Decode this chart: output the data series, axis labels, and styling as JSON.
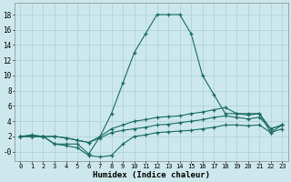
{
  "xlabel": "Humidex (Indice chaleur)",
  "bg_color": "#cce8ec",
  "grid_color": "#b0d4d8",
  "line_color": "#1a6b62",
  "xlim": [
    -0.5,
    23.5
  ],
  "ylim": [
    -1.2,
    19.5
  ],
  "xticks": [
    0,
    1,
    2,
    3,
    4,
    5,
    6,
    7,
    8,
    9,
    10,
    11,
    12,
    13,
    14,
    15,
    16,
    17,
    18,
    19,
    20,
    21,
    22,
    23
  ],
  "yticks": [
    0,
    2,
    4,
    6,
    8,
    10,
    12,
    14,
    16,
    18
  ],
  "ytick_labels": [
    "-0",
    "2",
    "4",
    "6",
    "8",
    "10",
    "12",
    "14",
    "16",
    "18"
  ],
  "lines": [
    {
      "x": [
        0,
        1,
        2,
        3,
        4,
        5,
        6,
        7,
        8,
        9,
        10,
        11,
        12,
        13,
        14,
        15,
        16,
        17,
        18,
        19,
        20,
        21,
        22,
        23
      ],
      "y": [
        2,
        2,
        2,
        1,
        1,
        1,
        -0.3,
        2,
        5,
        9,
        13,
        15.5,
        18,
        18,
        18,
        15.5,
        10,
        7.5,
        5,
        5,
        5,
        5,
        2.5,
        3.5
      ]
    },
    {
      "x": [
        0,
        1,
        2,
        3,
        4,
        5,
        6,
        7,
        8,
        9,
        10,
        11,
        12,
        13,
        14,
        15,
        16,
        17,
        18,
        19,
        20,
        21,
        22,
        23
      ],
      "y": [
        2,
        2,
        2,
        2,
        1.8,
        1.5,
        1.2,
        2,
        3,
        3.5,
        4,
        4.2,
        4.5,
        4.6,
        4.7,
        5,
        5.2,
        5.5,
        5.8,
        5,
        4.8,
        5,
        3,
        3.5
      ]
    },
    {
      "x": [
        0,
        1,
        2,
        3,
        4,
        5,
        6,
        7,
        8,
        9,
        10,
        11,
        12,
        13,
        14,
        15,
        16,
        17,
        18,
        19,
        20,
        21,
        22,
        23
      ],
      "y": [
        2,
        2,
        2,
        2,
        1.8,
        1.5,
        1.2,
        1.8,
        2.5,
        2.8,
        3,
        3.2,
        3.5,
        3.6,
        3.8,
        4,
        4.2,
        4.5,
        4.7,
        4.5,
        4.3,
        4.5,
        3,
        3.5
      ]
    },
    {
      "x": [
        0,
        1,
        2,
        3,
        4,
        5,
        6,
        7,
        8,
        9,
        10,
        11,
        12,
        13,
        14,
        15,
        16,
        17,
        18,
        19,
        20,
        21,
        22,
        23
      ],
      "y": [
        2,
        2.2,
        2,
        1,
        0.8,
        0.5,
        -0.5,
        -0.7,
        -0.5,
        1,
        2,
        2.2,
        2.5,
        2.6,
        2.7,
        2.8,
        3,
        3.2,
        3.5,
        3.5,
        3.4,
        3.5,
        2.5,
        3
      ]
    }
  ]
}
